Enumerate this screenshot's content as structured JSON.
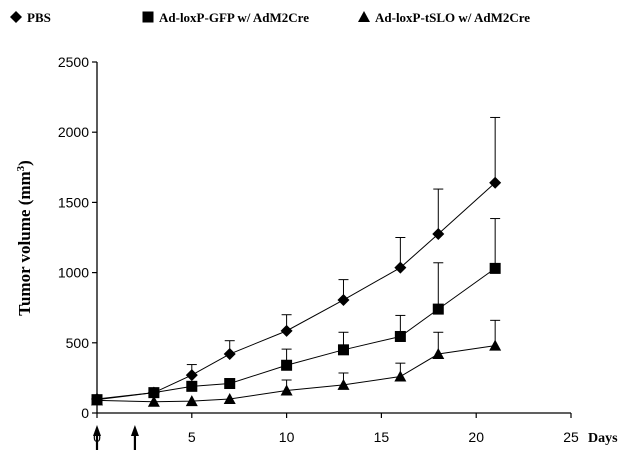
{
  "chart_data": {
    "type": "line",
    "title": "",
    "xlabel": "Days",
    "ylabel": "Tumor volume (mm",
    "ylabel_superscript": "3",
    "ylabel_suffix": ")",
    "xlim": [
      0,
      25
    ],
    "ylim": [
      0,
      2500
    ],
    "x_ticks": [
      0,
      5,
      10,
      15,
      20,
      25
    ],
    "y_ticks": [
      0,
      500,
      1000,
      1500,
      2000,
      2500
    ],
    "grid": false,
    "legend_position": "top",
    "treatment_days": [
      0,
      2
    ],
    "series": [
      {
        "name": "PBS",
        "marker": "diamond",
        "x": [
          0,
          3,
          5,
          7,
          10,
          13,
          16,
          18,
          21
        ],
        "y": [
          100,
          145,
          270,
          420,
          585,
          805,
          1035,
          1275,
          1640
        ],
        "error": [
          0,
          0,
          75,
          95,
          115,
          145,
          215,
          320,
          465
        ]
      },
      {
        "name": "Ad-loxP-GFP w/ AdM2Cre",
        "marker": "square",
        "x": [
          0,
          3,
          5,
          7,
          10,
          13,
          16,
          18,
          21
        ],
        "y": [
          95,
          145,
          190,
          210,
          340,
          450,
          545,
          740,
          1030
        ],
        "error": [
          0,
          0,
          0,
          0,
          115,
          125,
          150,
          330,
          355
        ]
      },
      {
        "name": "Ad-loxP-tSLO w/ AdM2Cre",
        "marker": "triangle",
        "x": [
          0,
          3,
          5,
          7,
          10,
          13,
          16,
          18,
          21
        ],
        "y": [
          90,
          80,
          85,
          100,
          160,
          200,
          260,
          420,
          480
        ],
        "error": [
          0,
          0,
          0,
          0,
          75,
          85,
          95,
          155,
          180
        ]
      }
    ]
  }
}
